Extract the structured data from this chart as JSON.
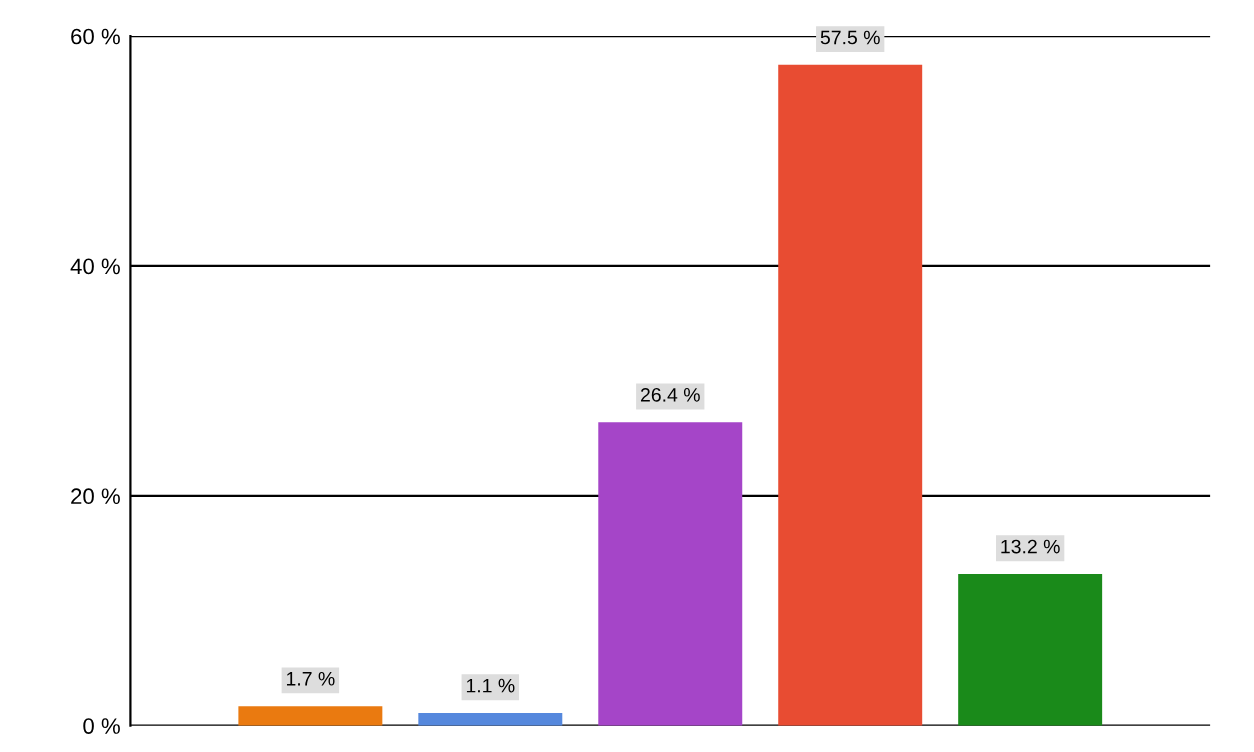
{
  "chart_data": {
    "type": "bar",
    "categories": [
      null,
      null,
      null,
      null,
      null
    ],
    "values": [
      1.7,
      1.1,
      26.4,
      57.5,
      13.2
    ],
    "colors": [
      "#ea7a10",
      "#5588dd",
      "#a545c8",
      "#e84c32",
      "#1a8a1a"
    ],
    "value_labels": [
      "1.7 %",
      "1.1 %",
      "26.4 %",
      "57.5 %",
      "13.2 %"
    ],
    "ylim": [
      0,
      60
    ],
    "yticks": [
      {
        "value": 0,
        "label": "0 %"
      },
      {
        "value": 20,
        "label": "20 %"
      },
      {
        "value": 40,
        "label": "40 %"
      },
      {
        "value": 60,
        "label": "60 %"
      }
    ],
    "grid": "y",
    "legend": false
  }
}
